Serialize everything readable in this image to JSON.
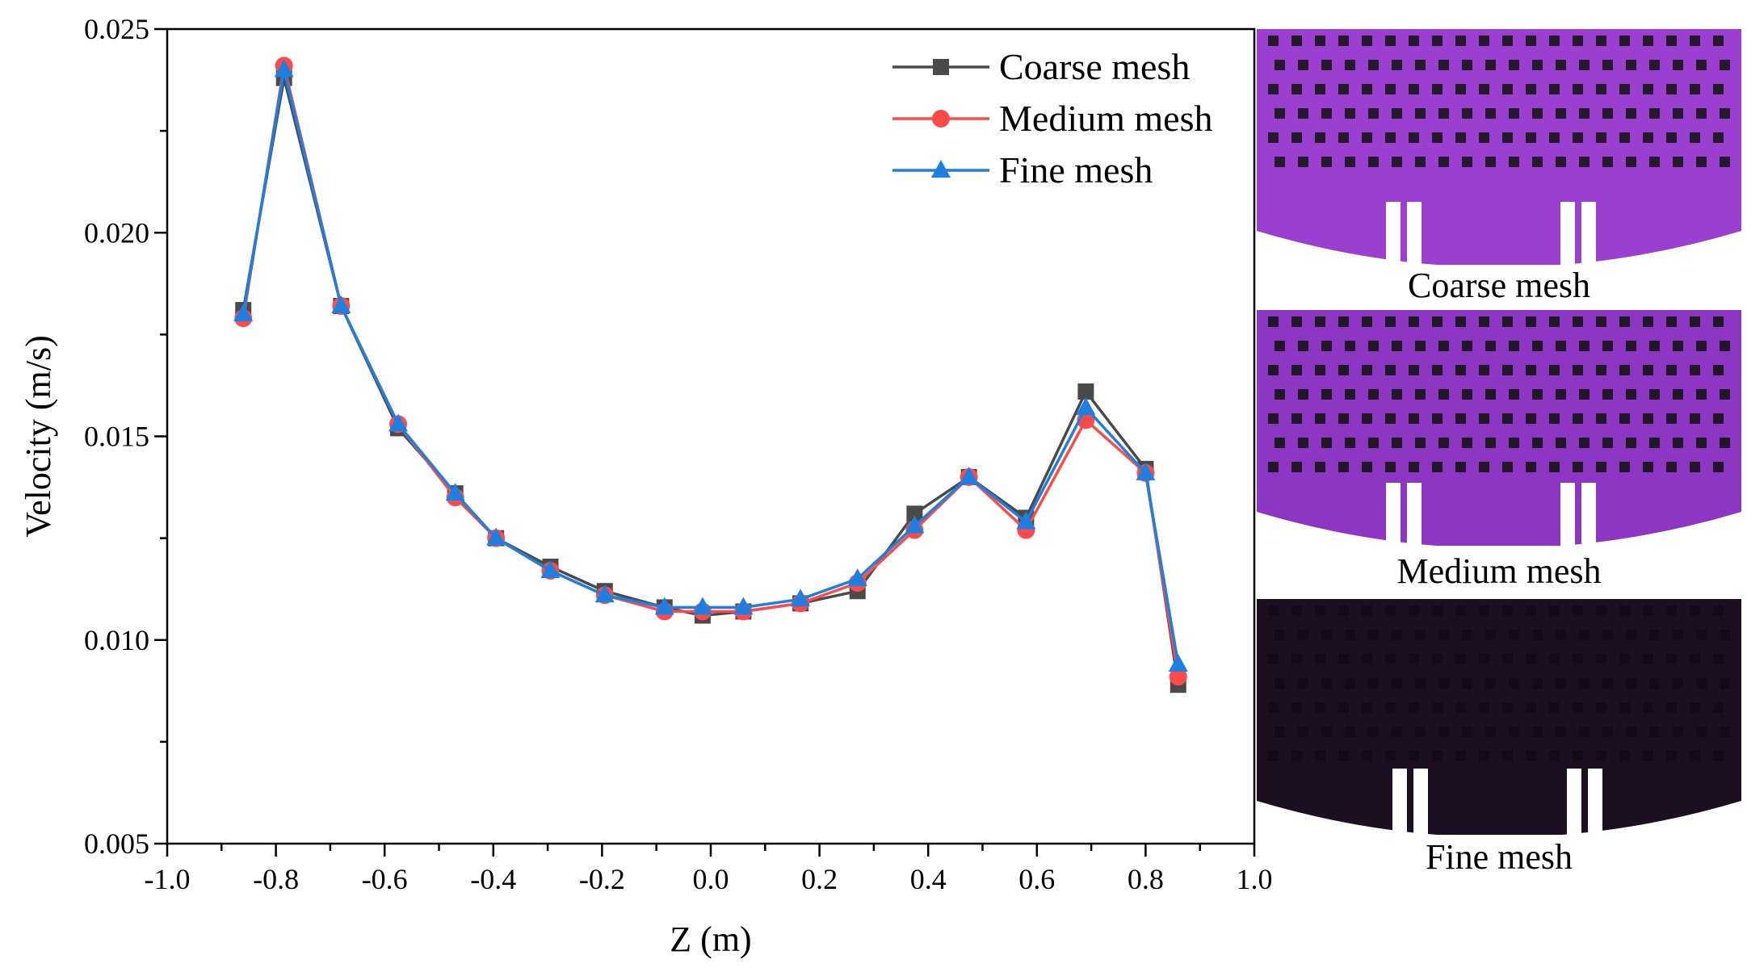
{
  "chart_data": {
    "type": "line",
    "title": "",
    "xlabel": "Z (m)",
    "ylabel": "Velocity (m/s)",
    "xlim": [
      -1.0,
      1.0
    ],
    "ylim": [
      0.005,
      0.025
    ],
    "xticks": [
      "-1.0",
      "-0.8",
      "-0.6",
      "-0.4",
      "-0.2",
      "0.0",
      "0.2",
      "0.4",
      "0.6",
      "0.8",
      "1.0"
    ],
    "yticks": [
      "0.005",
      "0.010",
      "0.015",
      "0.020",
      "0.025"
    ],
    "legend_position": "top-right",
    "x": [
      -0.86,
      -0.785,
      -0.68,
      -0.575,
      -0.47,
      -0.395,
      -0.295,
      -0.195,
      -0.085,
      -0.015,
      0.06,
      0.165,
      0.27,
      0.375,
      0.475,
      0.58,
      0.69,
      0.8,
      0.86
    ],
    "series": [
      {
        "name": "Coarse mesh",
        "color": "#4a4a4a",
        "marker": "square",
        "values": [
          0.0181,
          0.0238,
          0.0182,
          0.0152,
          0.0136,
          0.0125,
          0.0118,
          0.0112,
          0.0108,
          0.0106,
          0.0107,
          0.0109,
          0.0112,
          0.0131,
          0.014,
          0.013,
          0.0161,
          0.0142,
          0.0089
        ]
      },
      {
        "name": "Medium mesh",
        "color": "#ff4a4a",
        "marker": "circle",
        "values": [
          0.0179,
          0.0241,
          0.0182,
          0.0153,
          0.0135,
          0.0125,
          0.0117,
          0.0111,
          0.0107,
          0.0107,
          0.0107,
          0.0109,
          0.0114,
          0.0127,
          0.014,
          0.0127,
          0.0154,
          0.0141,
          0.0091
        ]
      },
      {
        "name": "Fine mesh",
        "color": "#1f7fe0",
        "marker": "triangle",
        "values": [
          0.018,
          0.024,
          0.0182,
          0.0153,
          0.0136,
          0.0125,
          0.0117,
          0.0111,
          0.0108,
          0.0108,
          0.0108,
          0.011,
          0.0115,
          0.0128,
          0.014,
          0.0129,
          0.0157,
          0.0141,
          0.0094
        ]
      }
    ]
  },
  "mesh_panels": [
    {
      "label": "Coarse mesh",
      "fill": "#9a3fd0",
      "hole": "#241a2c"
    },
    {
      "label": "Medium mesh",
      "fill": "#8e36c4",
      "hole": "#201826"
    },
    {
      "label": "Fine mesh",
      "fill": "#1c0f22",
      "hole": "#14091a"
    }
  ]
}
